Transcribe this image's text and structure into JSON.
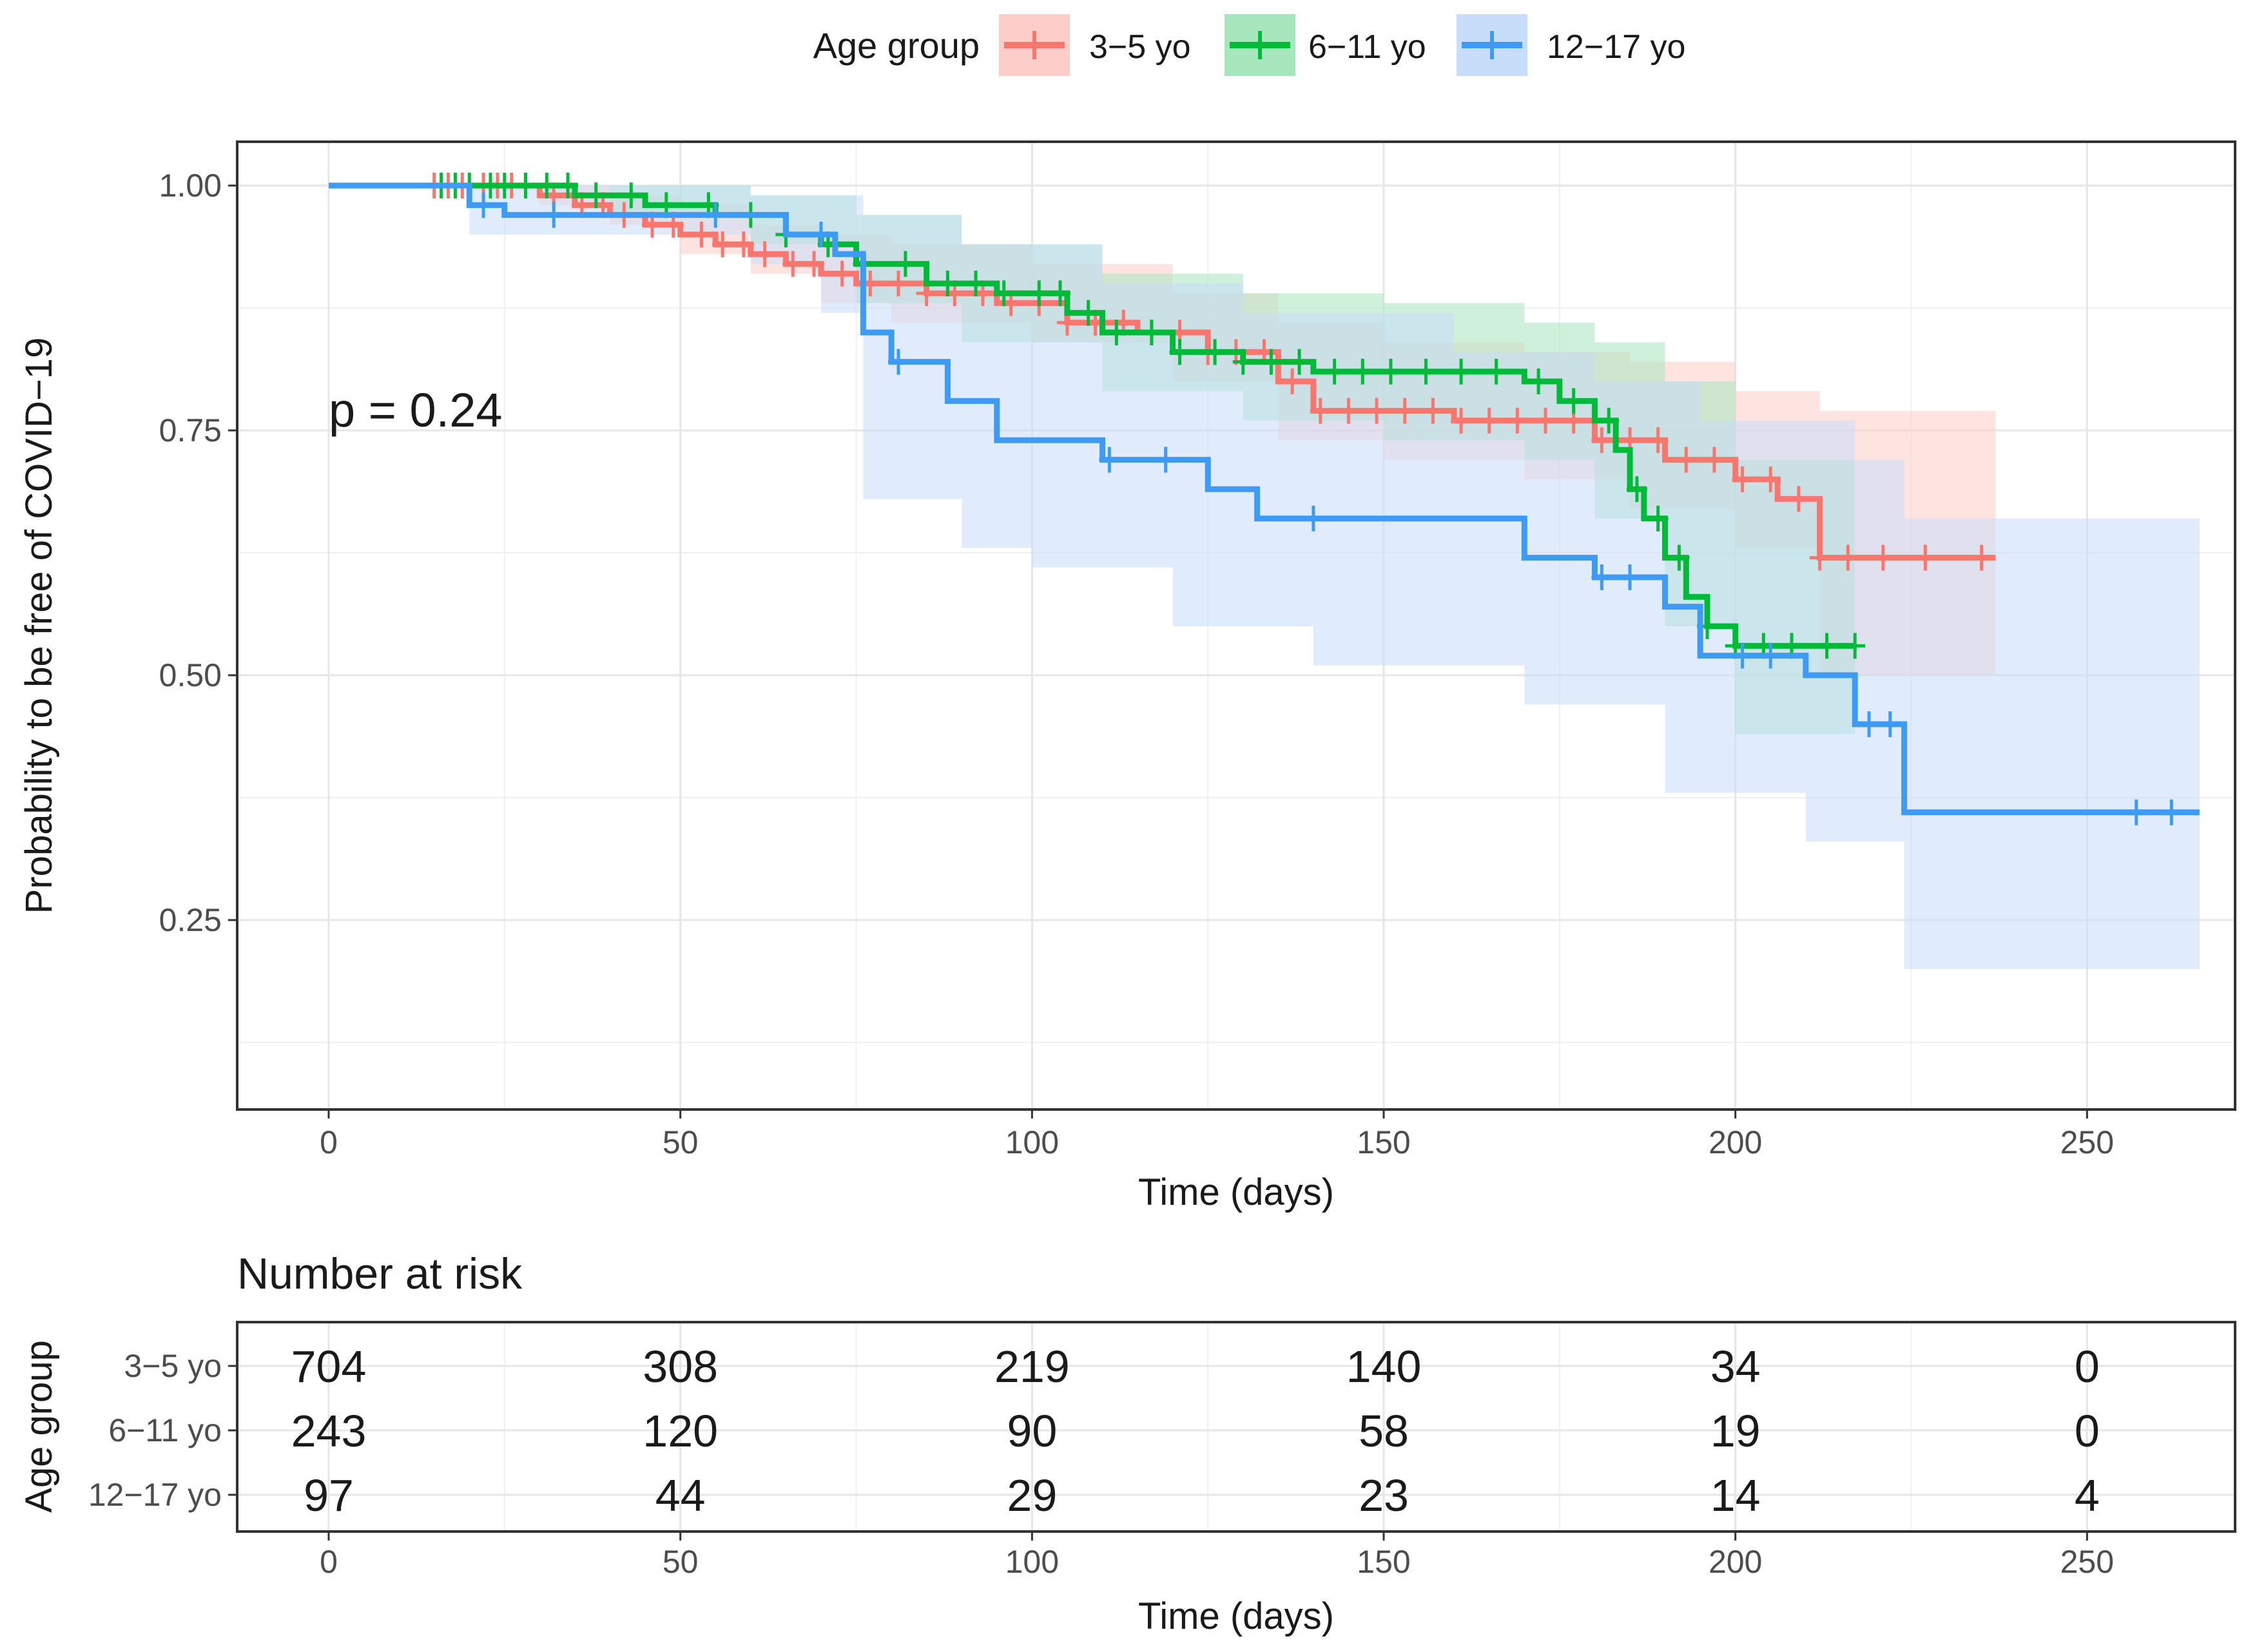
{
  "legend": {
    "title": "Age group",
    "entries": [
      {
        "label": "3−5 yo",
        "color": "#F8766D",
        "fill": "#FDCDC9"
      },
      {
        "label": "6−11 yo",
        "color": "#00BA38",
        "fill": "#A8E6BD"
      },
      {
        "label": "12−17 yo",
        "color": "#3D9BF5",
        "fill": "#C7DDFA"
      }
    ]
  },
  "chart_data": [
    {
      "type": "line",
      "subtype": "kaplan-meier step curve with confidence bands and censor marks",
      "title": "",
      "xlabel": "Time (days)",
      "ylabel": "Probability to be free of COVID−19",
      "xlim": [
        -13,
        273
      ],
      "ylim": [
        0.07,
        1.045
      ],
      "x_ticks": [
        0,
        50,
        100,
        150,
        200,
        250
      ],
      "x_tick_labels": [
        "0",
        "50",
        "100",
        "150",
        "200",
        "250"
      ],
      "y_ticks": [
        0.25,
        0.5,
        0.75,
        1.0
      ],
      "y_tick_labels": [
        "0.25",
        "0.50",
        "0.75",
        "1.00"
      ],
      "grid": true,
      "legend_position": "top",
      "annotation": "p = 0.24",
      "series": [
        {
          "name": "3−5 yo",
          "color": "#F8766D",
          "band_color": "#FDCDC9",
          "steps": [
            [
              0,
              1.0
            ],
            [
              30,
              0.99
            ],
            [
              35,
              0.98
            ],
            [
              40,
              0.97
            ],
            [
              45,
              0.96
            ],
            [
              50,
              0.95
            ],
            [
              55,
              0.94
            ],
            [
              60,
              0.93
            ],
            [
              65,
              0.92
            ],
            [
              70,
              0.91
            ],
            [
              75,
              0.9
            ],
            [
              85,
              0.89
            ],
            [
              95,
              0.88
            ],
            [
              105,
              0.86
            ],
            [
              115,
              0.85
            ],
            [
              125,
              0.83
            ],
            [
              135,
              0.8
            ],
            [
              140,
              0.77
            ],
            [
              160,
              0.76
            ],
            [
              180,
              0.74
            ],
            [
              190,
              0.72
            ],
            [
              200,
              0.7
            ],
            [
              206,
              0.68
            ],
            [
              212,
              0.62
            ],
            [
              237,
              0.62
            ]
          ],
          "upper": [
            [
              0,
              1.0
            ],
            [
              30,
              1.0
            ],
            [
              40,
              0.99
            ],
            [
              50,
              0.98
            ],
            [
              60,
              0.96
            ],
            [
              70,
              0.95
            ],
            [
              80,
              0.94
            ],
            [
              100,
              0.92
            ],
            [
              120,
              0.89
            ],
            [
              135,
              0.86
            ],
            [
              150,
              0.84
            ],
            [
              170,
              0.83
            ],
            [
              185,
              0.82
            ],
            [
              200,
              0.79
            ],
            [
              212,
              0.77
            ],
            [
              237,
              0.77
            ]
          ],
          "lower": [
            [
              0,
              1.0
            ],
            [
              30,
              0.98
            ],
            [
              40,
              0.96
            ],
            [
              50,
              0.93
            ],
            [
              60,
              0.91
            ],
            [
              70,
              0.88
            ],
            [
              80,
              0.86
            ],
            [
              100,
              0.84
            ],
            [
              120,
              0.8
            ],
            [
              135,
              0.74
            ],
            [
              150,
              0.72
            ],
            [
              170,
              0.7
            ],
            [
              185,
              0.67
            ],
            [
              200,
              0.63
            ],
            [
              212,
              0.5
            ],
            [
              237,
              0.5
            ]
          ],
          "censor_x": [
            15,
            17,
            19,
            22,
            24,
            26,
            28,
            32,
            36,
            39,
            42,
            46,
            49,
            53,
            56,
            59,
            62,
            66,
            69,
            73,
            77,
            81,
            85,
            89,
            93,
            97,
            101,
            105,
            109,
            113,
            117,
            121,
            125,
            129,
            133,
            137,
            141,
            145,
            149,
            153,
            157,
            161,
            165,
            169,
            173,
            177,
            181,
            185,
            189,
            193,
            197,
            201,
            205,
            209,
            212,
            216,
            221,
            227,
            235
          ]
        },
        {
          "name": "6−11 yo",
          "color": "#00BA38",
          "band_color": "#A8E6BD",
          "steps": [
            [
              0,
              1.0
            ],
            [
              35,
              0.99
            ],
            [
              45,
              0.98
            ],
            [
              55,
              0.97
            ],
            [
              65,
              0.95
            ],
            [
              70,
              0.94
            ],
            [
              75,
              0.92
            ],
            [
              85,
              0.9
            ],
            [
              95,
              0.89
            ],
            [
              105,
              0.87
            ],
            [
              110,
              0.85
            ],
            [
              120,
              0.83
            ],
            [
              130,
              0.82
            ],
            [
              140,
              0.81
            ],
            [
              170,
              0.8
            ],
            [
              175,
              0.78
            ],
            [
              180,
              0.76
            ],
            [
              183,
              0.73
            ],
            [
              185,
              0.69
            ],
            [
              187,
              0.66
            ],
            [
              190,
              0.62
            ],
            [
              193,
              0.58
            ],
            [
              196,
              0.55
            ],
            [
              200,
              0.53
            ],
            [
              217,
              0.53
            ]
          ],
          "upper": [
            [
              0,
              1.0
            ],
            [
              40,
              1.0
            ],
            [
              60,
              0.99
            ],
            [
              75,
              0.97
            ],
            [
              90,
              0.94
            ],
            [
              110,
              0.91
            ],
            [
              130,
              0.89
            ],
            [
              150,
              0.88
            ],
            [
              170,
              0.86
            ],
            [
              180,
              0.84
            ],
            [
              190,
              0.8
            ],
            [
              200,
              0.72
            ],
            [
              217,
              0.68
            ]
          ],
          "lower": [
            [
              0,
              1.0
            ],
            [
              40,
              0.97
            ],
            [
              60,
              0.94
            ],
            [
              75,
              0.88
            ],
            [
              90,
              0.84
            ],
            [
              110,
              0.79
            ],
            [
              130,
              0.76
            ],
            [
              150,
              0.74
            ],
            [
              170,
              0.72
            ],
            [
              180,
              0.66
            ],
            [
              190,
              0.55
            ],
            [
              200,
              0.44
            ],
            [
              217,
              0.41
            ]
          ],
          "censor_x": [
            16,
            18,
            20,
            23,
            25,
            28,
            31,
            34,
            38,
            43,
            48,
            54,
            60,
            65,
            71,
            76,
            82,
            88,
            92,
            96,
            101,
            104,
            108,
            112,
            117,
            121,
            126,
            130,
            134,
            138,
            143,
            147,
            151,
            156,
            161,
            166,
            172,
            177,
            182,
            186,
            189,
            192,
            196,
            200,
            204,
            208,
            213,
            217
          ]
        },
        {
          "name": "12−17 yo",
          "color": "#3D9BF5",
          "band_color": "#C7DDFA",
          "steps": [
            [
              0,
              1.0
            ],
            [
              20,
              0.98
            ],
            [
              25,
              0.97
            ],
            [
              65,
              0.95
            ],
            [
              72,
              0.93
            ],
            [
              76,
              0.85
            ],
            [
              80,
              0.82
            ],
            [
              88,
              0.78
            ],
            [
              95,
              0.74
            ],
            [
              110,
              0.72
            ],
            [
              125,
              0.69
            ],
            [
              132,
              0.66
            ],
            [
              170,
              0.62
            ],
            [
              180,
              0.6
            ],
            [
              190,
              0.57
            ],
            [
              195,
              0.52
            ],
            [
              210,
              0.5
            ],
            [
              217,
              0.45
            ],
            [
              224,
              0.36
            ],
            [
              266,
              0.36
            ]
          ],
          "upper": [
            [
              0,
              1.0
            ],
            [
              20,
              1.0
            ],
            [
              60,
              0.99
            ],
            [
              70,
              0.99
            ],
            [
              76,
              0.97
            ],
            [
              90,
              0.94
            ],
            [
              110,
              0.9
            ],
            [
              130,
              0.87
            ],
            [
              160,
              0.83
            ],
            [
              180,
              0.8
            ],
            [
              195,
              0.76
            ],
            [
              217,
              0.72
            ],
            [
              224,
              0.66
            ],
            [
              266,
              0.66
            ]
          ],
          "lower": [
            [
              0,
              1.0
            ],
            [
              20,
              0.95
            ],
            [
              60,
              0.92
            ],
            [
              70,
              0.87
            ],
            [
              76,
              0.68
            ],
            [
              90,
              0.63
            ],
            [
              100,
              0.61
            ],
            [
              120,
              0.55
            ],
            [
              140,
              0.51
            ],
            [
              170,
              0.47
            ],
            [
              190,
              0.38
            ],
            [
              210,
              0.33
            ],
            [
              224,
              0.2
            ],
            [
              266,
              0.2
            ]
          ],
          "censor_x": [
            22,
            32,
            55,
            70,
            81,
            111,
            119,
            140,
            181,
            185,
            201,
            205,
            219,
            222,
            257,
            262
          ]
        }
      ]
    },
    {
      "type": "table",
      "title": "Number at risk",
      "xlabel": "Time (days)",
      "ylabel": "Age group",
      "x_ticks": [
        0,
        50,
        100,
        150,
        200,
        250
      ],
      "x_tick_labels": [
        "0",
        "50",
        "100",
        "150",
        "200",
        "250"
      ],
      "row_labels": [
        "3−5 yo",
        "6−11 yo",
        "12−17 yo"
      ],
      "rows": [
        [
          "704",
          "308",
          "219",
          "140",
          "34",
          "0"
        ],
        [
          "243",
          "120",
          "90",
          "58",
          "19",
          "0"
        ],
        [
          "97",
          "44",
          "29",
          "23",
          "14",
          "4"
        ]
      ]
    }
  ]
}
